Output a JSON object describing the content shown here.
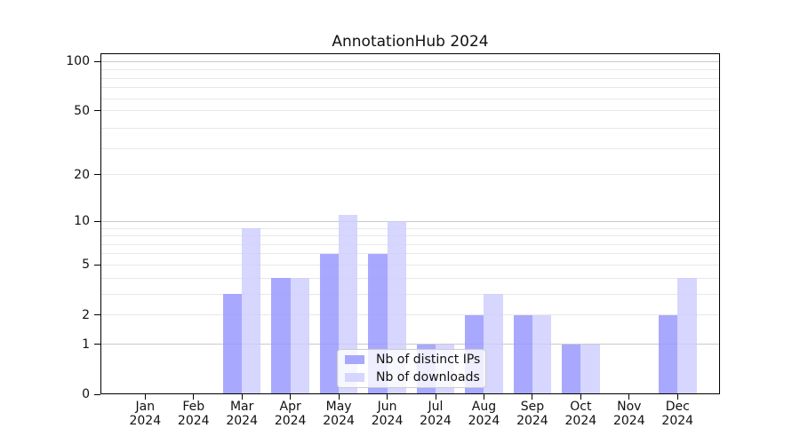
{
  "chart_data": {
    "type": "bar",
    "title": "AnnotationHub 2024",
    "year": "2024",
    "months": [
      "Jan",
      "Feb",
      "Mar",
      "Apr",
      "May",
      "Jun",
      "Jul",
      "Aug",
      "Sep",
      "Oct",
      "Nov",
      "Dec"
    ],
    "categories": [
      "Jan 2024",
      "Feb 2024",
      "Mar 2024",
      "Apr 2024",
      "May 2024",
      "Jun 2024",
      "Jul 2024",
      "Aug 2024",
      "Sep 2024",
      "Oct 2024",
      "Nov 2024",
      "Dec 2024"
    ],
    "series": [
      {
        "name": "Nb of distinct IPs",
        "color": "#9999ff",
        "alpha": 0.85,
        "values": [
          0,
          0,
          3,
          4,
          6,
          6,
          1,
          2,
          2,
          1,
          0,
          2
        ]
      },
      {
        "name": "Nb of downloads",
        "color": "#ccccff",
        "alpha": 0.8,
        "values": [
          0,
          0,
          9,
          4,
          11,
          10,
          1,
          3,
          2,
          1,
          0,
          4
        ]
      }
    ],
    "yscale": "log1p",
    "ylim": [
      0,
      112
    ],
    "yticks": [
      0,
      1,
      2,
      5,
      10,
      20,
      50,
      100
    ],
    "grid": {
      "major": [
        1,
        10,
        100
      ],
      "minor": [
        2,
        3,
        4,
        5,
        6,
        7,
        8,
        9,
        20,
        29,
        39,
        50,
        59,
        69,
        79,
        89
      ]
    },
    "legend_position": "lower center",
    "colors": {
      "grid_major": "#c9c9c9",
      "grid_minor": "#e8e8e8",
      "axis": "#000000",
      "text": "#111111",
      "background": "#ffffff"
    }
  }
}
